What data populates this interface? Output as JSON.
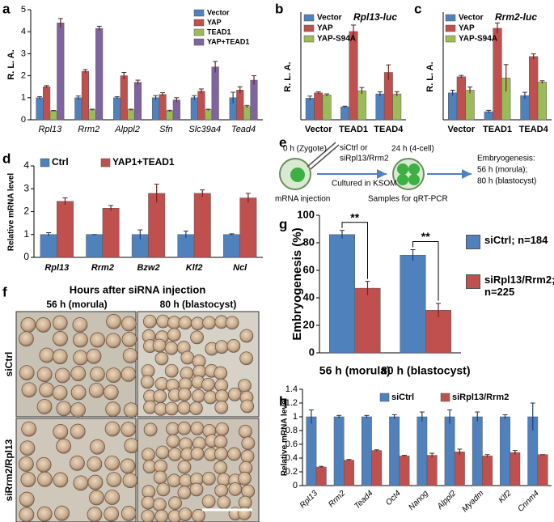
{
  "chart_data": [
    {
      "type": "bar",
      "panel": "a",
      "ylabel": "R. L. A.",
      "categories": [
        "Rpl13",
        "Rrm2",
        "Alppl2",
        "Sfn",
        "Slc39a4",
        "Tead4"
      ],
      "series": [
        {
          "name": "Vector",
          "color": "#4f81bd",
          "values": [
            1,
            1,
            1,
            1,
            1,
            1
          ],
          "errors": [
            0.05,
            0.08,
            0.05,
            0.1,
            0.1,
            0.25
          ]
        },
        {
          "name": "YAP",
          "color": "#c0504d",
          "values": [
            1.5,
            2.2,
            2.0,
            1.15,
            1.3,
            1.35
          ],
          "errors": [
            0.05,
            0.08,
            0.15,
            0.08,
            0.1,
            0.15
          ]
        },
        {
          "name": "TEAD1",
          "color": "#9bbb59",
          "values": [
            0.4,
            0.45,
            0.45,
            0.4,
            0.45,
            0.6
          ],
          "errors": [
            0.02,
            0.03,
            0.03,
            0.03,
            0.03,
            0.05
          ]
        },
        {
          "name": "YAP+TEAD1",
          "color": "#8064a2",
          "values": [
            4.4,
            4.15,
            1.7,
            0.9,
            2.4,
            1.8
          ],
          "errors": [
            0.2,
            0.1,
            0.1,
            0.1,
            0.25,
            0.2
          ]
        }
      ],
      "ylim": [
        0,
        5
      ],
      "yticks": [
        0,
        1,
        2,
        3,
        4,
        5
      ]
    },
    {
      "type": "bar",
      "panel": "b",
      "title": "Rpl13-luc",
      "ylabel": "R. L. A.",
      "categories": [
        "Vector",
        "TEAD1",
        "TEAD4"
      ],
      "series": [
        {
          "name": "Vector",
          "color": "#4f81bd",
          "values": [
            1.0,
            0.6,
            1.2
          ],
          "errors": [
            0.1,
            0.03,
            0.1
          ]
        },
        {
          "name": "YAP",
          "color": "#c0504d",
          "values": [
            1.25,
            4.1,
            2.2
          ],
          "errors": [
            0.05,
            0.3,
            0.35
          ]
        },
        {
          "name": "YAP-S94A",
          "color": "#9bbb59",
          "values": [
            1.15,
            1.35,
            1.2
          ],
          "errors": [
            0.05,
            0.15,
            0.1
          ]
        }
      ],
      "ylim": [
        0,
        5
      ]
    },
    {
      "type": "bar",
      "panel": "c",
      "title": "Rrm2-luc",
      "ylabel": "R. L. A.",
      "categories": [
        "Vector",
        "TEAD1",
        "TEAD4"
      ],
      "series": [
        {
          "name": "Vector",
          "color": "#4f81bd",
          "values": [
            1.0,
            0.3,
            0.9
          ],
          "errors": [
            0.1,
            0.05,
            0.12
          ]
        },
        {
          "name": "YAP",
          "color": "#c0504d",
          "values": [
            1.6,
            3.4,
            2.35
          ],
          "errors": [
            0.05,
            0.2,
            0.1
          ]
        },
        {
          "name": "YAP-S94A",
          "color": "#9bbb59",
          "values": [
            1.1,
            1.55,
            1.4
          ],
          "errors": [
            0.12,
            0.5,
            0.05
          ]
        }
      ],
      "ylim": [
        0,
        4
      ]
    },
    {
      "type": "bar",
      "panel": "d",
      "ylabel": "Relative mRNA level",
      "categories": [
        "Rpl13",
        "Rrm2",
        "Bzw2",
        "Klf2",
        "Ncl"
      ],
      "series": [
        {
          "name": "Ctrl",
          "color": "#4f81bd",
          "values": [
            1,
            1,
            1,
            1,
            1
          ],
          "errors": [
            0.08,
            0,
            0.2,
            0.15,
            0.03
          ]
        },
        {
          "name": "YAP1+TEAD1",
          "color": "#c0504d",
          "values": [
            2.45,
            2.15,
            2.8,
            2.8,
            2.6
          ],
          "errors": [
            0.15,
            0.12,
            0.4,
            0.15,
            0.2
          ]
        }
      ],
      "ylim": [
        0,
        4
      ],
      "yticks": [
        0,
        1,
        2,
        3,
        4
      ]
    },
    {
      "type": "bar",
      "panel": "g",
      "ylabel": "Embryogenesis (%)",
      "categories": [
        "56 h (morula)",
        "80 h (blastocyst)"
      ],
      "series": [
        {
          "name": "siCtrl; n=184",
          "color": "#4f81bd",
          "values": [
            86,
            71
          ],
          "errors": [
            3,
            4
          ]
        },
        {
          "name": "siRpl13/Rrm2; n=225",
          "color": "#c0504d",
          "values": [
            47,
            31
          ],
          "errors": [
            5,
            5
          ]
        }
      ],
      "annotations": [
        "**",
        "**"
      ],
      "ylim": [
        0,
        100
      ],
      "yticks": [
        0,
        20,
        40,
        60,
        80,
        100
      ]
    },
    {
      "type": "bar",
      "panel": "h",
      "ylabel": "Relative mRNA level",
      "categories": [
        "Rpl13",
        "Rrm2",
        "Tead4",
        "Oct4",
        "Nanog",
        "Alppl2",
        "Myadm",
        "Klf2",
        "Cnnm4"
      ],
      "series": [
        {
          "name": "siCtrl",
          "color": "#4f81bd",
          "values": [
            1,
            1,
            1,
            1,
            1,
            1,
            1,
            1,
            1
          ],
          "errors": [
            0.1,
            0.02,
            0.02,
            0.03,
            0.07,
            0.1,
            0.07,
            0.03,
            0.2
          ]
        },
        {
          "name": "siRpl13/Rrm2",
          "color": "#c0504d",
          "values": [
            0.27,
            0.37,
            0.51,
            0.43,
            0.44,
            0.49,
            0.43,
            0.48,
            0.45
          ],
          "errors": [
            0.01,
            0.01,
            0.01,
            0.01,
            0.03,
            0.04,
            0.02,
            0.03,
            0
          ]
        }
      ],
      "ylim": [
        0,
        1.4
      ],
      "yticks": [
        0,
        0.2,
        0.4,
        0.6,
        0.8,
        1,
        1.2,
        1.4
      ]
    }
  ],
  "panel_e": {
    "panel": "e",
    "zygote": "0 h (Zygote)",
    "sirna_1": "siCtrl or",
    "sirna_2": "siRpl13/Rrm2",
    "culture": "Cultured in KSOM",
    "injection": "mRNA injection",
    "four_cell": "24 h (4-cell)",
    "samples": "Samples for qRT-PCR",
    "outcome_1": "Embryogenesis:",
    "outcome_2": "56 h (morula);",
    "outcome_3": "80 h (blastocyst)"
  },
  "panel_f": {
    "panel": "f",
    "title": "Hours after siRNA injection",
    "columns": [
      "56 h (morula)",
      "80 h (blastocyst)"
    ],
    "rows": [
      "siCtrl",
      "siRrm2/Rpl13"
    ]
  }
}
